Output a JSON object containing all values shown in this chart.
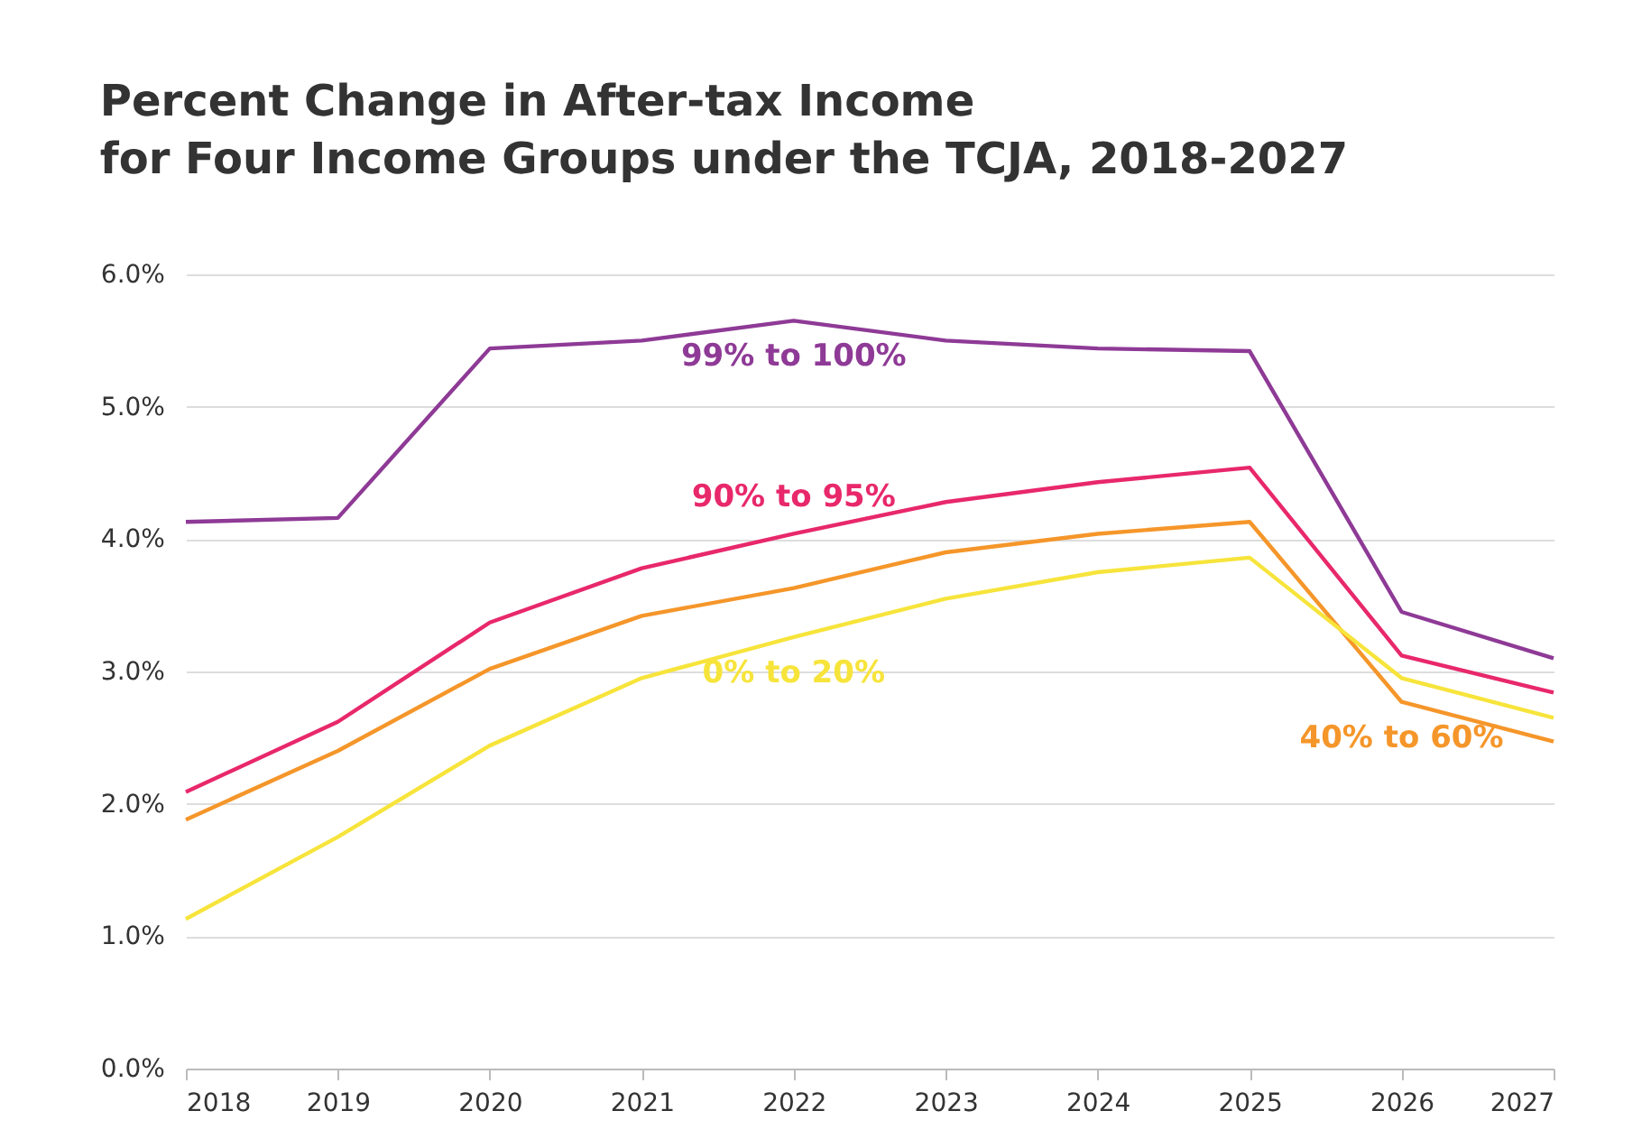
{
  "chart_data": {
    "type": "line",
    "title": "Percent Change in  After-tax Income\nfor Four Income Groups under the TCJA, 2018-2027",
    "x": [
      2018,
      2019,
      2020,
      2021,
      2022,
      2023,
      2024,
      2025,
      2026,
      2027
    ],
    "series": [
      {
        "name": "99% to 100%",
        "color": "#8e3a96",
        "values": [
          4.13,
          4.16,
          5.44,
          5.5,
          5.65,
          5.5,
          5.44,
          5.42,
          3.45,
          3.1
        ]
      },
      {
        "name": "90%  to 95%",
        "color": "#e8286b",
        "values": [
          2.09,
          2.62,
          3.37,
          3.78,
          4.04,
          4.28,
          4.43,
          4.54,
          3.12,
          2.84
        ]
      },
      {
        "name": "40% to 60%",
        "color": "#f5962a",
        "values": [
          1.88,
          2.4,
          3.02,
          3.42,
          3.63,
          3.9,
          4.04,
          4.13,
          2.77,
          2.47
        ]
      },
      {
        "name": "0% to 20%",
        "color": "#f7e43b",
        "values": [
          1.13,
          1.75,
          2.44,
          2.95,
          3.26,
          3.55,
          3.75,
          3.86,
          2.95,
          2.65
        ]
      }
    ],
    "xlim": [
      2018,
      2027
    ],
    "xticks": [
      2018,
      2019,
      2020,
      2021,
      2022,
      2023,
      2024,
      2025,
      2026,
      2027
    ],
    "ylim": [
      0,
      6
    ],
    "yticks": [
      {
        "value": 0,
        "label": "0.0%"
      },
      {
        "value": 1,
        "label": "1.0%"
      },
      {
        "value": 2,
        "label": "2.0%"
      },
      {
        "value": 3,
        "label": "3.0%"
      },
      {
        "value": 4,
        "label": "4.0%"
      },
      {
        "value": 5,
        "label": "5.0%"
      },
      {
        "value": 6,
        "label": "6.0%"
      }
    ],
    "grid": "y",
    "legend": false,
    "marker": "none",
    "line_style": "solid"
  }
}
